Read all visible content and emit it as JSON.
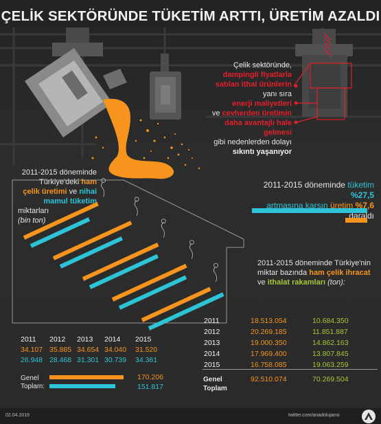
{
  "title": "ÇELİK SEKTÖRÜNDE TÜKETİM ARTTI, ÜRETİM AZALDI",
  "causes": {
    "line1": "Çelik sektöründe,",
    "line2": "dampingli fiyatlarla",
    "line3": "satılan ithal ürünlerin",
    "line4": "yanı sıra",
    "line5": "enerji maliyetleri",
    "line6_ve": "ve",
    "line6": "cevherden üretimin",
    "line7": "daha avantajlı hale",
    "line8": "gelmesi",
    "line9": "gibi nedenlerden dolayı",
    "line10": "sıkıntı yaşanıyor"
  },
  "left_intro": {
    "l1": "2011-2015 döneminde",
    "l2a": "Türkiye'deki",
    "l2b": "ham",
    "l3a": "çelik üretimi",
    "l3b": "ve",
    "l3c": "nihai",
    "l4": "mamul tüketim",
    "l5": "miktarları",
    "l6": "(bin ton)"
  },
  "right_intro": {
    "l1a": "2011-2015 döneminde",
    "l1b": "tüketim",
    "l1c": "%27,5",
    "l2a": "artmasına karşın",
    "l2b": "üretim",
    "l2c": "%7,6",
    "l2d": "daraldı"
  },
  "trade_intro": {
    "l1": "2011-2015 döneminde Türkiye'nin",
    "l2a": "miktar bazında",
    "l2b": "ham çelik ihracat",
    "l3a": "ve",
    "l3b": "ithalat rakamları",
    "l3c": "(ton):"
  },
  "colors": {
    "production": "#f7941d",
    "consumption": "#2ec4d8",
    "highlight": "#e2202b",
    "import": "#a6c838"
  },
  "chart_data": [
    {
      "type": "bar",
      "categories": [
        "2011",
        "2012",
        "2013",
        "2014",
        "2015"
      ],
      "series": [
        {
          "values": [
            34107,
            35885,
            34654,
            34040,
            31520
          ]
        },
        {
          "values": [
            26948,
            28468,
            31301,
            30739,
            34361
          ]
        }
      ],
      "labels_prod": [
        "34.107",
        "35.885",
        "34.654",
        "34.040",
        "31.520"
      ],
      "labels_cons": [
        "26.948",
        "28.468",
        "31.301",
        "30.739",
        "34.361"
      ],
      "total_label": "Genel Toplam:",
      "total_prod": "170.206",
      "total_cons": "151.817"
    },
    {
      "type": "table",
      "rows": [
        {
          "year": "2011",
          "export": "18.513.054",
          "import": "10.684.350"
        },
        {
          "year": "2012",
          "export": "20.269.185",
          "import": "11.851.887"
        },
        {
          "year": "2013",
          "export": "19.000.350",
          "import": "14.862.163"
        },
        {
          "year": "2014",
          "export": "17.969.400",
          "import": "13.807.845"
        },
        {
          "year": "2015",
          "export": "16.758.085",
          "import": "19.063.259"
        }
      ],
      "total_label": "Genel Toplam",
      "total_export": "92.510.074",
      "total_import": "70.269.504"
    }
  ],
  "footer": {
    "date": "02.04.2016",
    "social": "twitter.com/anadolujansi"
  }
}
